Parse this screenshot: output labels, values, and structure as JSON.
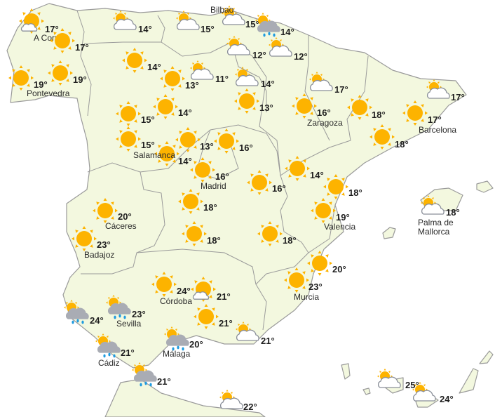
{
  "colors": {
    "land": "#f3f8df",
    "sea": "#ffffff",
    "sun": "#fdb300",
    "rain_cloud": "#a9acb4",
    "rain_drop": "#1e9be0",
    "border": "#9a9a9a"
  },
  "locations": [
    {
      "city": "A Coruña",
      "temp": "17°",
      "icon": "sun-small-cloud"
    },
    {
      "city": "",
      "temp": "17°",
      "icon": "sun"
    },
    {
      "city": "",
      "temp": "14°",
      "icon": "partly-cloudy"
    },
    {
      "city": "",
      "temp": "15°",
      "icon": "partly-cloudy"
    },
    {
      "city": "Bilbao",
      "temp": "15°",
      "icon": "partly-cloudy"
    },
    {
      "city": "",
      "temp": "14°",
      "icon": "rain"
    },
    {
      "city": "Pontevedra",
      "temp": "19°",
      "icon": "sun"
    },
    {
      "city": "",
      "temp": "19°",
      "icon": "sun"
    },
    {
      "city": "",
      "temp": "14°",
      "icon": "sun"
    },
    {
      "city": "",
      "temp": "12°",
      "icon": "partly-cloudy"
    },
    {
      "city": "",
      "temp": "12°",
      "icon": "partly-cloudy"
    },
    {
      "city": "",
      "temp": "13°",
      "icon": "sun"
    },
    {
      "city": "",
      "temp": "11°",
      "icon": "partly-cloudy"
    },
    {
      "city": "",
      "temp": "14°",
      "icon": "partly-cloudy"
    },
    {
      "city": "",
      "temp": "17°",
      "icon": "partly-cloudy"
    },
    {
      "city": "",
      "temp": "17°",
      "icon": "partly-cloudy"
    },
    {
      "city": "",
      "temp": "15°",
      "icon": "sun"
    },
    {
      "city": "",
      "temp": "14°",
      "icon": "sun"
    },
    {
      "city": "",
      "temp": "13°",
      "icon": "sun"
    },
    {
      "city": "Zaragoza",
      "temp": "16°",
      "icon": "sun"
    },
    {
      "city": "",
      "temp": "18°",
      "icon": "sun"
    },
    {
      "city": "Barcelona",
      "temp": "17°",
      "icon": "sun"
    },
    {
      "city": "",
      "temp": "15°",
      "icon": "sun"
    },
    {
      "city": "Salamanca",
      "temp": "14°",
      "icon": "sun"
    },
    {
      "city": "",
      "temp": "13°",
      "icon": "sun"
    },
    {
      "city": "",
      "temp": "16°",
      "icon": "sun"
    },
    {
      "city": "",
      "temp": "18°",
      "icon": "sun"
    },
    {
      "city": "Madrid",
      "temp": "16°",
      "icon": "sun"
    },
    {
      "city": "",
      "temp": "14°",
      "icon": "sun"
    },
    {
      "city": "",
      "temp": "16°",
      "icon": "sun"
    },
    {
      "city": "",
      "temp": "18°",
      "icon": "sun"
    },
    {
      "city": "",
      "temp": "18°",
      "icon": "sun"
    },
    {
      "city": "Cáceres",
      "temp": "20°",
      "icon": "sun"
    },
    {
      "city": "Valencia",
      "temp": "19°",
      "icon": "sun"
    },
    {
      "city": "Palma de Mallorca",
      "temp": "18°",
      "icon": "partly-cloudy"
    },
    {
      "city": "",
      "temp": "18°",
      "icon": "sun"
    },
    {
      "city": "",
      "temp": "18°",
      "icon": "sun"
    },
    {
      "city": "Badajoz",
      "temp": "23°",
      "icon": "sun"
    },
    {
      "city": "",
      "temp": "20°",
      "icon": "sun"
    },
    {
      "city": "Murcia",
      "temp": "23°",
      "icon": "sun"
    },
    {
      "city": "Córdoba",
      "temp": "24°",
      "icon": "sun"
    },
    {
      "city": "",
      "temp": "21°",
      "icon": "sun-small-cloud"
    },
    {
      "city": "",
      "temp": "24°",
      "icon": "rain"
    },
    {
      "city": "Sevilla",
      "temp": "23°",
      "icon": "rain"
    },
    {
      "city": "",
      "temp": "21°",
      "icon": "sun"
    },
    {
      "city": "",
      "temp": "21°",
      "icon": "partly-cloudy"
    },
    {
      "city": "Málaga",
      "temp": "20°",
      "icon": "rain"
    },
    {
      "city": "Cádiz",
      "temp": "21°",
      "icon": "rain"
    },
    {
      "city": "",
      "temp": "21°",
      "icon": "rain"
    },
    {
      "city": "",
      "temp": "25°",
      "icon": "partly-cloudy"
    },
    {
      "city": "",
      "temp": "24°",
      "icon": "partly-cloudy"
    },
    {
      "city": "",
      "temp": "22°",
      "icon": "partly-cloudy"
    }
  ]
}
